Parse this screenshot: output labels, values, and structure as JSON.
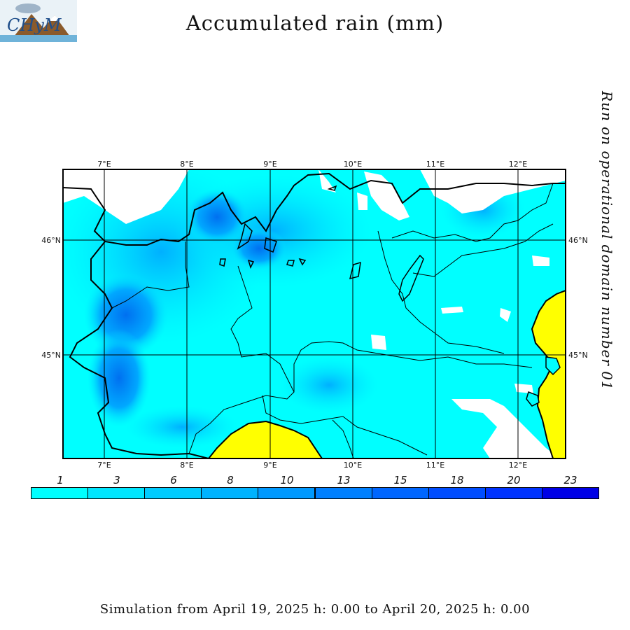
{
  "header": {
    "title": "Accumulated rain (mm)",
    "side_caption": "Run on operational domain number 01"
  },
  "logo": {
    "text": "CHyM"
  },
  "map": {
    "longitude_labels": [
      "7°E",
      "8°E",
      "9°E",
      "10°E",
      "11°E",
      "12°E"
    ],
    "latitude_labels": [
      "46°N",
      "45°N"
    ],
    "colors": {
      "land_rain": "#00ffff",
      "rain_mid": "#00c8ff",
      "rain_high": "#0078ff",
      "sea": "#ffff00",
      "no_rain": "#ffffff",
      "border": "#000000"
    }
  },
  "legend": {
    "labels": [
      "1",
      "3",
      "6",
      "8",
      "10",
      "13",
      "15",
      "18",
      "20",
      "23"
    ],
    "colors": [
      "#00ffff",
      "#00e6ff",
      "#00ccff",
      "#00b3ff",
      "#0099ff",
      "#0080ff",
      "#0066ff",
      "#004dff",
      "#0033ff",
      "#0000e6"
    ]
  },
  "footer": {
    "text": "Simulation from April 19, 2025 h: 0.00 to April 20, 2025 h: 0.00"
  }
}
